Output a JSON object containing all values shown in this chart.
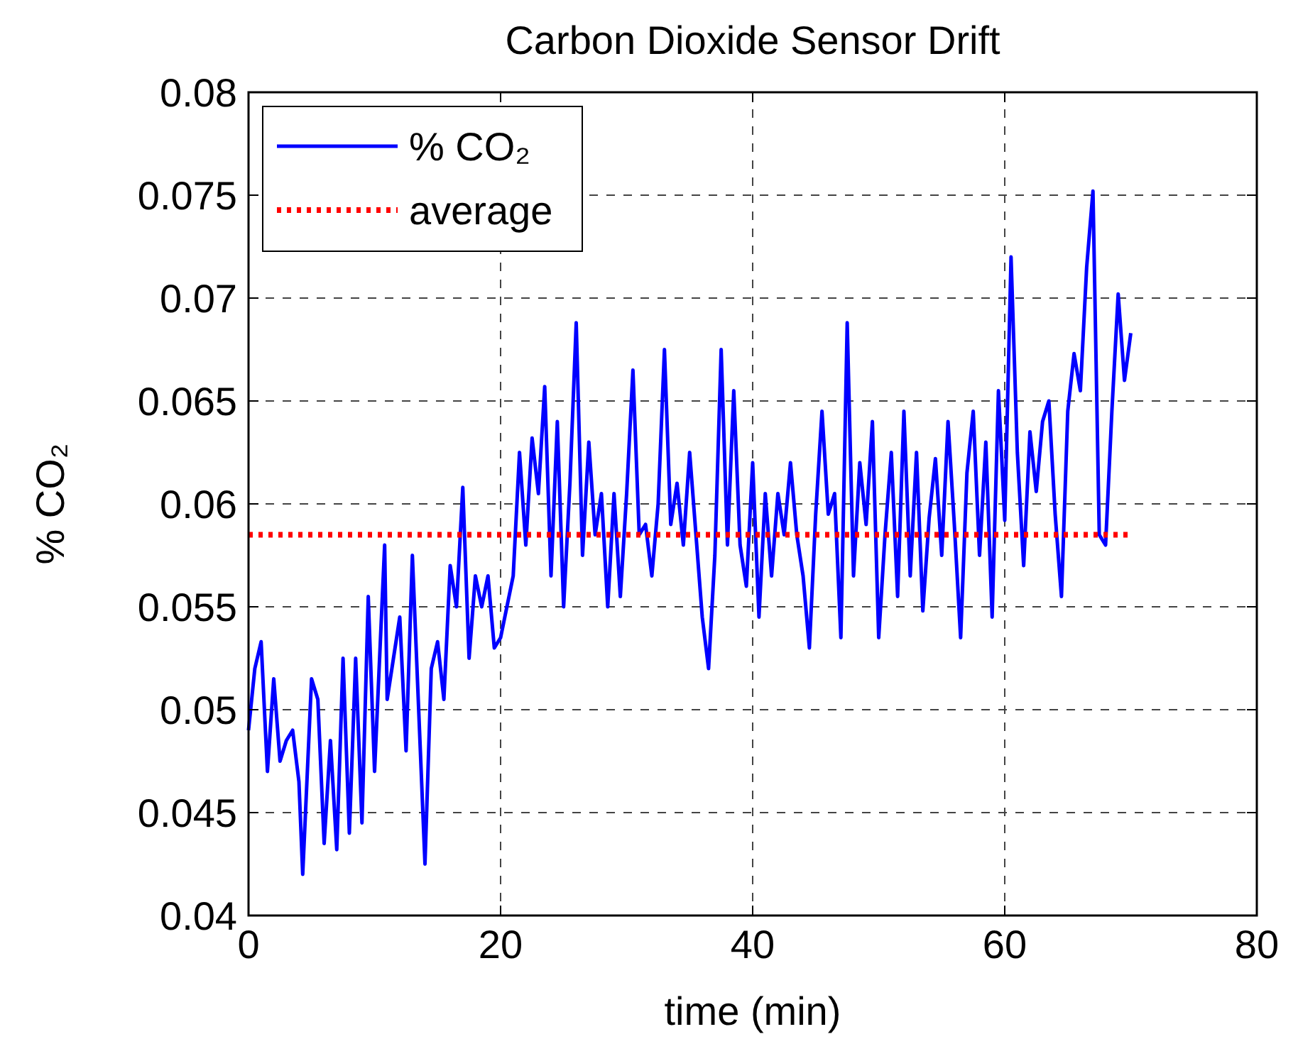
{
  "chart_data": {
    "type": "line",
    "title": "Carbon Dioxide Sensor Drift",
    "xlabel": "time (min)",
    "ylabel": "% CO₂",
    "xlim": [
      0,
      80
    ],
    "xticks": [
      0,
      20,
      40,
      60,
      80
    ],
    "ylim": [
      0.04,
      0.08
    ],
    "yticks": [
      0.04,
      0.045,
      0.05,
      0.055,
      0.06,
      0.065,
      0.07,
      0.075,
      0.08
    ],
    "grid": true,
    "legend": "top left",
    "series": [
      {
        "name": "% CO₂",
        "color": "#0000ff",
        "line_style": "solid",
        "x": [
          0,
          0.5,
          1,
          1.5,
          2,
          2.5,
          3,
          3.5,
          4,
          4.3,
          5,
          5.5,
          6,
          6.5,
          7,
          7.5,
          8,
          8.5,
          9,
          9.5,
          10,
          10.8,
          11,
          12,
          12.5,
          13,
          13.5,
          14,
          14.5,
          15,
          15.5,
          16,
          16.5,
          17,
          17.5,
          18,
          18.5,
          19,
          19.5,
          20,
          21,
          21.5,
          22,
          22.5,
          23,
          23.5,
          24,
          24.5,
          25,
          25.5,
          26,
          26.5,
          27,
          27.5,
          28,
          28.5,
          29,
          29.5,
          30,
          30.5,
          31,
          31.5,
          32,
          32.5,
          33,
          33.5,
          34,
          34.5,
          35,
          35.5,
          36,
          36.5,
          37,
          37.5,
          38,
          38.5,
          39,
          39.5,
          40,
          40.5,
          41,
          41.5,
          42,
          42.5,
          43,
          43.5,
          44,
          44.5,
          45,
          45.5,
          46,
          46.5,
          47,
          47.5,
          48,
          48.5,
          49,
          49.5,
          50,
          50.5,
          51,
          51.5,
          52,
          52.5,
          53,
          53.5,
          54,
          54.5,
          55,
          55.5,
          56,
          56.5,
          57,
          57.5,
          58,
          58.5,
          59,
          59.5,
          60,
          60.5,
          61,
          61.5,
          62,
          62.5,
          63,
          63.5,
          64,
          64.5,
          65,
          65.5,
          66,
          66.5,
          67,
          67.5,
          68,
          68.5,
          69,
          69.5,
          70
        ],
        "values": [
          0.049,
          0.052,
          0.0533,
          0.047,
          0.0515,
          0.0475,
          0.0485,
          0.049,
          0.0465,
          0.042,
          0.0515,
          0.0505,
          0.0435,
          0.0485,
          0.0432,
          0.0525,
          0.044,
          0.0525,
          0.0445,
          0.0555,
          0.047,
          0.058,
          0.0505,
          0.0545,
          0.048,
          0.0575,
          0.05,
          0.0425,
          0.052,
          0.0533,
          0.0505,
          0.057,
          0.055,
          0.0608,
          0.0525,
          0.0565,
          0.055,
          0.0565,
          0.053,
          0.0535,
          0.0565,
          0.0625,
          0.058,
          0.0632,
          0.0605,
          0.0657,
          0.0565,
          0.064,
          0.055,
          0.061,
          0.0688,
          0.0575,
          0.063,
          0.0585,
          0.0605,
          0.055,
          0.0605,
          0.0555,
          0.0605,
          0.0665,
          0.0585,
          0.059,
          0.0565,
          0.06,
          0.0675,
          0.059,
          0.061,
          0.058,
          0.0625,
          0.0585,
          0.0545,
          0.052,
          0.0575,
          0.0675,
          0.058,
          0.0655,
          0.058,
          0.056,
          0.062,
          0.0545,
          0.0605,
          0.0565,
          0.0605,
          0.0585,
          0.062,
          0.0585,
          0.0565,
          0.053,
          0.0595,
          0.0645,
          0.0595,
          0.0605,
          0.0535,
          0.0688,
          0.0565,
          0.062,
          0.059,
          0.064,
          0.0535,
          0.0585,
          0.0625,
          0.0555,
          0.0645,
          0.0565,
          0.0625,
          0.0548,
          0.0593,
          0.0622,
          0.0575,
          0.064,
          0.059,
          0.0535,
          0.0615,
          0.0645,
          0.0575,
          0.063,
          0.0545,
          0.0655,
          0.0592,
          0.072,
          0.0625,
          0.057,
          0.0635,
          0.0606,
          0.064,
          0.065,
          0.0595,
          0.0555,
          0.0645,
          0.0673,
          0.0655,
          0.0715,
          0.0752,
          0.0585,
          0.058,
          0.0645,
          0.0702,
          0.066,
          0.0683
        ]
      },
      {
        "name": "average",
        "color": "#ff0000",
        "line_style": "dotted",
        "x": [
          0,
          70
        ],
        "values": [
          0.0585,
          0.0585
        ]
      }
    ]
  }
}
